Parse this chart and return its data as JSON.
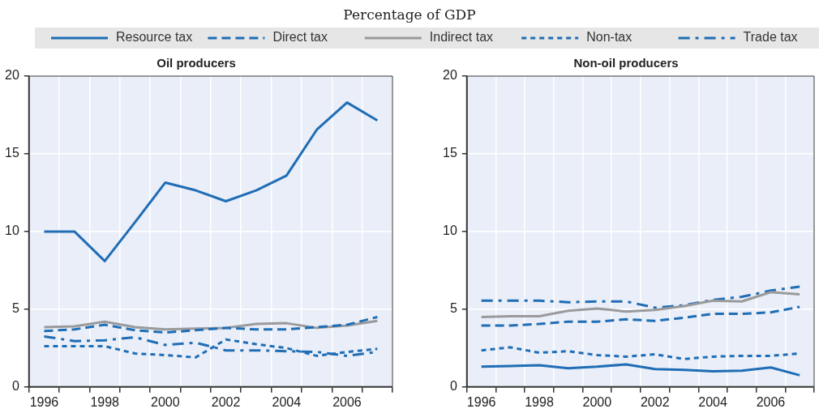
{
  "chart_data": [
    {
      "type": "line",
      "title": "Oil producers",
      "subtitle": "Percentage of GDP",
      "legend": "top",
      "grid": true,
      "categories": [
        "1996",
        null,
        "1998",
        null,
        "2000",
        null,
        "2002",
        null,
        "2004",
        null,
        "2006",
        null
      ],
      "ylim": [
        0,
        20
      ],
      "yticks": [
        0,
        5,
        10,
        15,
        20
      ],
      "series": [
        {
          "name": "Resource tax",
          "color": "#1f6db5",
          "line_style": "solid",
          "values": [
            10,
            10,
            8.1,
            10.6,
            13.15,
            12.65,
            11.95,
            12.65,
            13.6,
            16.55,
            18.3,
            17.15
          ]
        },
        {
          "name": "Direct tax",
          "color": "#1f6db5",
          "line_style": "dashed",
          "values": [
            3.6,
            3.7,
            4.0,
            3.65,
            3.5,
            3.65,
            3.8,
            3.7,
            3.7,
            3.85,
            4.0,
            4.5
          ]
        },
        {
          "name": "Indirect tax",
          "color": "#9a9a9c",
          "line_style": "solid",
          "values": [
            3.85,
            3.9,
            4.2,
            3.85,
            3.7,
            3.75,
            3.8,
            4.05,
            4.1,
            3.8,
            3.95,
            4.25
          ]
        },
        {
          "name": "Non-tax",
          "color": "#1f6db5",
          "line_style": "dotted",
          "values": [
            2.62,
            2.62,
            2.62,
            2.15,
            2.05,
            1.9,
            3.05,
            2.75,
            2.5,
            2.0,
            2.25,
            2.45
          ]
        },
        {
          "name": "Trade tax",
          "color": "#1f6db5",
          "line_style": "dashdot",
          "values": [
            3.25,
            2.95,
            3.0,
            3.2,
            2.7,
            2.85,
            2.35,
            2.35,
            2.3,
            2.25,
            2.0,
            2.25
          ]
        }
      ]
    },
    {
      "type": "line",
      "title": "Non-oil producers",
      "grid": true,
      "categories": [
        "1996",
        null,
        "1998",
        null,
        "2000",
        null,
        "2002",
        null,
        "2004",
        null,
        "2006",
        null
      ],
      "ylim": [
        0,
        20
      ],
      "yticks": [
        0,
        5,
        10,
        15,
        20
      ],
      "series": [
        {
          "color": "#1f6db5",
          "line_style": "solid",
          "values": [
            1.3,
            1.35,
            1.4,
            1.2,
            1.3,
            1.45,
            1.15,
            1.1,
            1.0,
            1.05,
            1.25,
            0.75
          ]
        },
        {
          "color": "#1f6db5",
          "line_style": "dashed",
          "values": [
            3.95,
            3.95,
            4.05,
            4.2,
            4.2,
            4.35,
            4.25,
            4.45,
            4.7,
            4.7,
            4.8,
            5.15
          ]
        },
        {
          "color": "#9a9a9c",
          "line_style": "solid",
          "values": [
            4.5,
            4.55,
            4.55,
            4.9,
            5.05,
            4.85,
            4.95,
            5.2,
            5.55,
            5.5,
            6.1,
            5.95
          ]
        },
        {
          "color": "#1f6db5",
          "line_style": "dotted",
          "values": [
            2.35,
            2.55,
            2.2,
            2.3,
            2.05,
            1.95,
            2.1,
            1.8,
            1.95,
            2.0,
            2.0,
            2.15
          ]
        },
        {
          "color": "#1f6db5",
          "line_style": "dashdot",
          "values": [
            5.55,
            5.55,
            5.55,
            5.45,
            5.5,
            5.5,
            5.1,
            5.25,
            5.6,
            5.8,
            6.2,
            6.45
          ]
        }
      ]
    }
  ]
}
